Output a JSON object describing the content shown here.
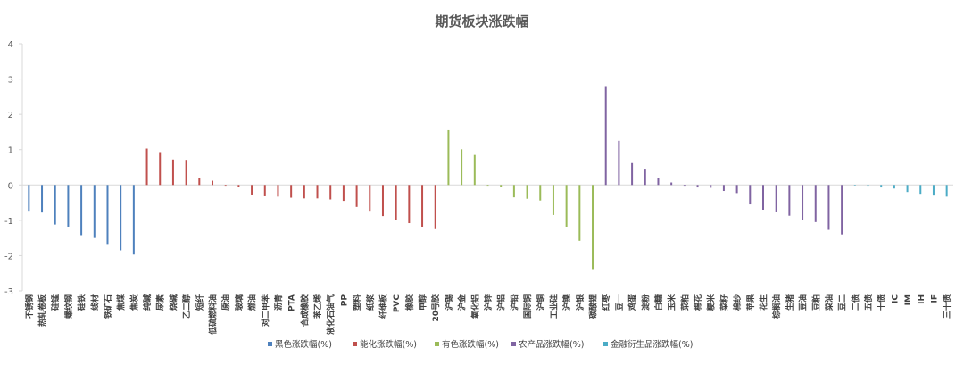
{
  "chart_data": {
    "type": "bar",
    "title": "期货板块涨跌幅",
    "xlabel": "",
    "ylabel": "",
    "ylim": [
      -3,
      4
    ],
    "yticks": [
      -3,
      -2,
      -1,
      0,
      1,
      2,
      3,
      4
    ],
    "grid": false,
    "legend_position": "bottom",
    "series": [
      {
        "name": "黑色涨跌幅(%)",
        "color": "#4e81bd",
        "categories": [
          "不锈钢",
          "热轧卷板",
          "硅锰",
          "螺纹钢",
          "硅铁",
          "线材",
          "铁矿石",
          "焦煤",
          "焦炭"
        ],
        "values": [
          -0.73,
          -0.78,
          -1.12,
          -1.18,
          -1.42,
          -1.5,
          -1.67,
          -1.85,
          -1.97
        ]
      },
      {
        "name": "能化涨跌幅(%)",
        "color": "#c0504d",
        "categories": [
          "纯碱",
          "尿素",
          "烧碱",
          "乙二醇",
          "短纤",
          "低硫燃料油",
          "原油",
          "玻璃",
          "燃油",
          "对二甲苯",
          "沥青",
          "PTA",
          "合成橡胶",
          "苯乙烯",
          "液化石油气",
          "PP",
          "塑料",
          "纸浆",
          "纤维板",
          "PVC",
          "橡胶",
          "甲醇",
          "20号胶"
        ],
        "values": [
          1.03,
          0.93,
          0.72,
          0.71,
          0.2,
          0.12,
          -0.02,
          -0.05,
          -0.27,
          -0.32,
          -0.33,
          -0.36,
          -0.38,
          -0.38,
          -0.41,
          -0.45,
          -0.62,
          -0.73,
          -0.88,
          -0.98,
          -1.08,
          -1.18,
          -1.25
        ]
      },
      {
        "name": "有色涨跌幅(%)",
        "color": "#9bbb59",
        "categories": [
          "沪锡",
          "沪金",
          "氧化铝",
          "沪锌",
          "沪铝",
          "沪铅",
          "国际铜",
          "沪铜",
          "工业硅",
          "沪镍",
          "沪银",
          "碳酸锂"
        ],
        "values": [
          1.55,
          1.01,
          0.85,
          -0.02,
          -0.06,
          -0.35,
          -0.39,
          -0.44,
          -0.85,
          -1.18,
          -1.58,
          -2.38
        ]
      },
      {
        "name": "农产品涨跌幅(%)",
        "color": "#8064a2",
        "categories": [
          "红枣",
          "豆一",
          "鸡蛋",
          "淀粉",
          "白糖",
          "玉米",
          "菜粕",
          "棉花",
          "粳米",
          "菜籽",
          "棉纱",
          "苹果",
          "花生",
          "棕榈油",
          "生猪",
          "豆油",
          "豆粕",
          "菜油",
          "豆二"
        ],
        "values": [
          2.8,
          1.25,
          0.62,
          0.46,
          0.2,
          0.07,
          -0.02,
          -0.07,
          -0.08,
          -0.17,
          -0.23,
          -0.55,
          -0.7,
          -0.75,
          -0.87,
          -0.98,
          -1.05,
          -1.27,
          -1.4
        ]
      },
      {
        "name": "金融衍生品涨跌幅(%)",
        "color": "#4bacc6",
        "categories": [
          "二债",
          "五债",
          "十债",
          "IC",
          "IM",
          "IH",
          "IF",
          "三十债"
        ],
        "values": [
          -0.01,
          -0.02,
          -0.07,
          -0.1,
          -0.2,
          -0.25,
          -0.3,
          -0.33
        ]
      }
    ]
  }
}
